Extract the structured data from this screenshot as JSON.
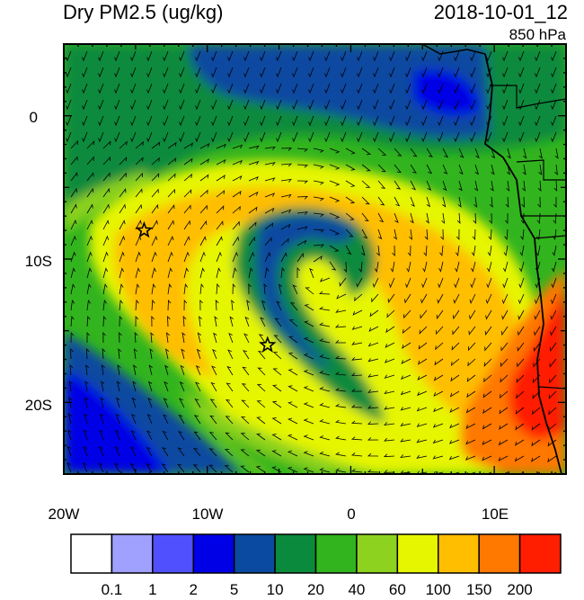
{
  "title": "Dry PM2.5 (ug/kg)",
  "datetime": "2018-10-01_12",
  "level": "850 hPa",
  "x_ticks": [
    "20W",
    "10W",
    "0",
    "10E"
  ],
  "y_ticks": [
    "0",
    "10S",
    "20S"
  ],
  "colorbar": {
    "colors": [
      "#ffffff",
      "#a0a0ff",
      "#5050ff",
      "#0000e6",
      "#0a4aa0",
      "#0a8a3c",
      "#32b41e",
      "#8cd21e",
      "#e6f500",
      "#ffbe00",
      "#ff7800",
      "#ff1e00"
    ],
    "labels": [
      "0.1",
      "1",
      "2",
      "5",
      "10",
      "20",
      "40",
      "60",
      "100",
      "150",
      "200"
    ]
  },
  "markers": [
    {
      "name": "star",
      "lon": -14.4,
      "lat": -8.0
    },
    {
      "name": "star",
      "lon": -5.8,
      "lat": -16.0
    }
  ]
}
